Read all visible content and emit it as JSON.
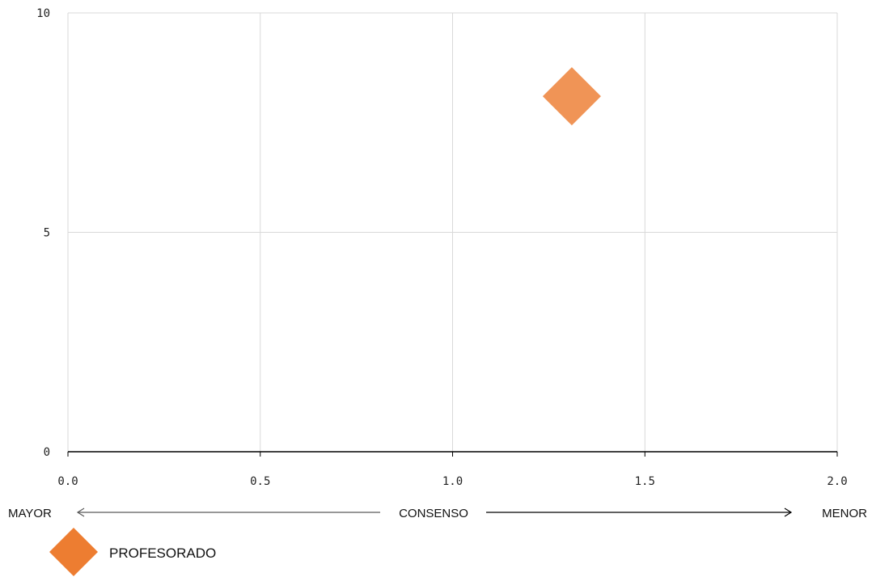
{
  "chart_data": {
    "type": "scatter",
    "xlim": [
      0,
      2
    ],
    "ylim": [
      0,
      10
    ],
    "x_ticks": [
      "0.0",
      "0.5",
      "1.0",
      "1.5",
      "2.0"
    ],
    "y_ticks": [
      "0",
      "5",
      "10"
    ],
    "grid": true,
    "legend_placement": "bottom-left",
    "series": [
      {
        "name": "PROFESORADO",
        "marker": "diamond",
        "color": "#ED7D31",
        "points": [
          {
            "x": 1.31,
            "y": 8.1
          }
        ]
      }
    ],
    "x_annotation": {
      "left": "MAYOR",
      "center": "CONSENSO",
      "right": "MENOR"
    },
    "colors": {
      "grid": "#d9d9d9",
      "axis": "#000000",
      "arrow": "#595959"
    }
  }
}
